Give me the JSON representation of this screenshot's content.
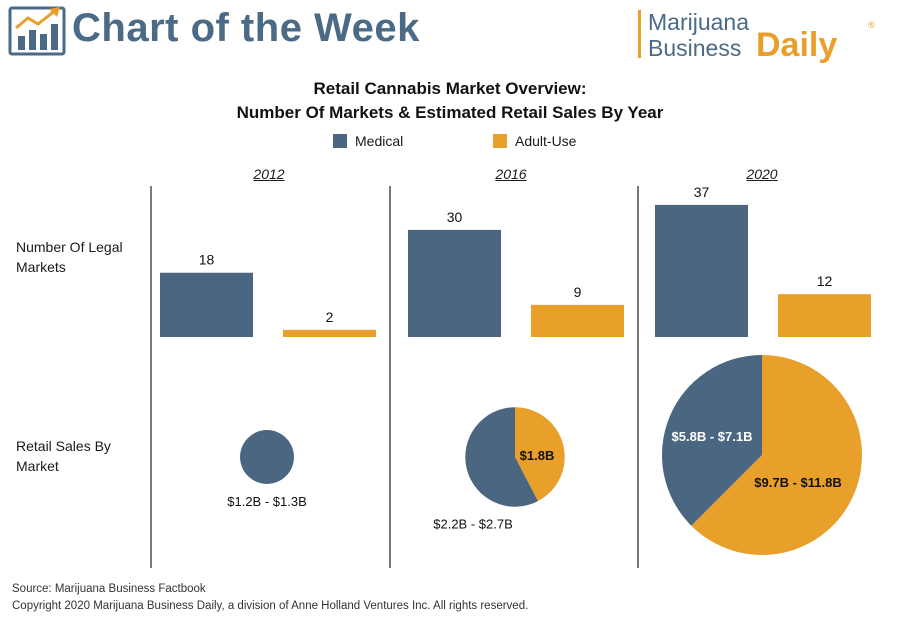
{
  "header": {
    "title": "Chart of the Week",
    "logo_icon": "bar-chart-trend-icon",
    "brand": {
      "line1": "Marijuana",
      "line2": "Business",
      "accent": "Daily",
      "mark": "®"
    }
  },
  "colors": {
    "medical": "#4a6681",
    "adult_use": "#e8a02a",
    "header_blue": "#4a6a86"
  },
  "chart_data": {
    "type": "bar",
    "title": "Retail Cannabis Market Overview:",
    "subtitle": "Number Of Markets & Estimated Retail Sales By Year",
    "legend": [
      {
        "name": "Medical",
        "color": "#4a6681"
      },
      {
        "name": "Adult-Use",
        "color": "#e8a02a"
      }
    ],
    "legend_placement": "top-center",
    "years": [
      "2012",
      "2016",
      "2020"
    ],
    "row_labels": [
      "Number Of Legal Markets",
      "Retail Sales By Market"
    ],
    "series": [
      {
        "name": "Medical",
        "values": [
          18,
          30,
          37
        ]
      },
      {
        "name": "Adult-Use",
        "values": [
          2,
          9,
          12
        ]
      }
    ],
    "pies": [
      {
        "year": "2012",
        "medical": 1.25,
        "adult_use": 0,
        "medical_label": "$1.2B - $1.3B",
        "adult_use_label": ""
      },
      {
        "year": "2016",
        "medical": 2.45,
        "adult_use": 1.8,
        "medical_label": "$2.2B - $2.7B",
        "adult_use_label": "$1.8B"
      },
      {
        "year": "2020",
        "medical": 6.45,
        "adult_use": 10.75,
        "medical_label": "$5.8B - $7.1B",
        "adult_use_label": "$9.7B - $11.8B"
      }
    ]
  },
  "footer": {
    "source": "Source: Marijuana Business Factbook",
    "copyright": "Copyright 2020 Marijuana Business Daily, a division of Anne Holland Ventures Inc. All rights reserved."
  }
}
